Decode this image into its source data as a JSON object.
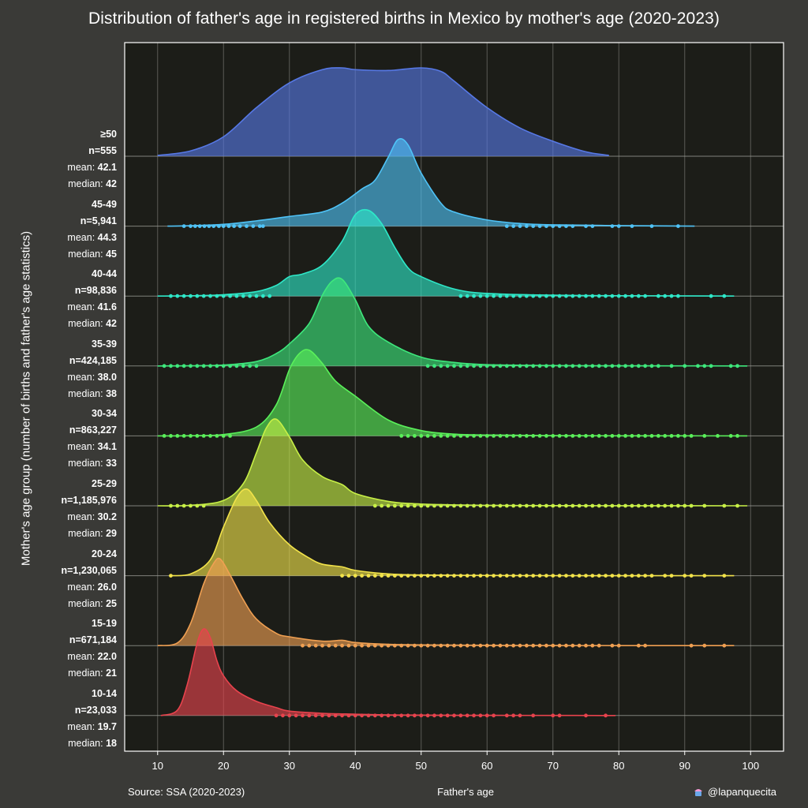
{
  "title": "Distribution of father's age in registered births in Mexico by mother's age (2020-2023)",
  "source": "Source: SSA (2020-2023)",
  "xlabel": "Father's age",
  "ylabel": "Mother's age group (number of births and father's age statistics)",
  "credit": "@lapanquecita",
  "labels": {
    "mean": "mean:",
    "median": "median:"
  },
  "colors": {
    "background": "#3a3a37",
    "plot_bg": "#1c1d18",
    "grid": "#5a5b55"
  },
  "chart_data": {
    "type": "ridgeline",
    "xlim": [
      5,
      105
    ],
    "xticks": [
      10,
      20,
      30,
      40,
      50,
      60,
      70,
      80,
      90,
      100
    ],
    "grid": true,
    "groups": [
      {
        "label": "≥50",
        "n": "n=555",
        "mean": "42.1",
        "median": "42",
        "color": "#5779e6",
        "x": [
          10,
          15,
          20,
          25,
          30,
          35,
          38,
          40,
          45,
          50,
          53,
          55,
          60,
          65,
          70,
          75,
          78.5
        ],
        "y": [
          0.01,
          0.06,
          0.22,
          0.55,
          0.83,
          0.98,
          1.0,
          0.98,
          0.97,
          1.0,
          0.96,
          0.85,
          0.55,
          0.32,
          0.17,
          0.05,
          0.01
        ],
        "outliers": []
      },
      {
        "label": "45-49",
        "n": "n=5,941",
        "mean": "44.3",
        "median": "45",
        "color": "#4fc3f7",
        "x": [
          11.5,
          15,
          20,
          25,
          30,
          35,
          38,
          41,
          43,
          45,
          46.5,
          48,
          50,
          53,
          55,
          60,
          65,
          70,
          80,
          91.5
        ],
        "y": [
          0.0,
          0.005,
          0.02,
          0.06,
          0.11,
          0.16,
          0.26,
          0.42,
          0.52,
          0.78,
          0.98,
          0.92,
          0.6,
          0.26,
          0.16,
          0.07,
          0.03,
          0.015,
          0.006,
          0.0
        ],
        "outliers": [
          14,
          15,
          15.7,
          16.4,
          17.1,
          17.8,
          18.5,
          19.3,
          20,
          20.8,
          21.6,
          22.5,
          23.5,
          24.5,
          25.5,
          26,
          63,
          64,
          65,
          66,
          67,
          68,
          69,
          70,
          71,
          72,
          73,
          75,
          76,
          79,
          80,
          82,
          85,
          89
        ]
      },
      {
        "label": "40-44",
        "n": "n=98,836",
        "mean": "41.6",
        "median": "42",
        "color": "#2ee8c8",
        "x": [
          10,
          15,
          20,
          25,
          28,
          30,
          32,
          35,
          38,
          40,
          42,
          44,
          46,
          48,
          50,
          55,
          60,
          70,
          80,
          97.5
        ],
        "y": [
          0.0,
          0.003,
          0.015,
          0.05,
          0.12,
          0.22,
          0.25,
          0.35,
          0.62,
          0.92,
          0.97,
          0.82,
          0.55,
          0.32,
          0.22,
          0.08,
          0.03,
          0.01,
          0.004,
          0.0
        ],
        "outliers": [
          12,
          13,
          14,
          15,
          16,
          17,
          18,
          19,
          20,
          21,
          22,
          23,
          24,
          25,
          26,
          27,
          56,
          57,
          58,
          59,
          60,
          61,
          62,
          63,
          64,
          65,
          66,
          67,
          68,
          69,
          70,
          71,
          72,
          73,
          74,
          75,
          76,
          77,
          78,
          79,
          80,
          81,
          82,
          83,
          84,
          86,
          87,
          88,
          89,
          94,
          96
        ]
      },
      {
        "label": "35-39",
        "n": "n=424,185",
        "mean": "38.0",
        "median": "38",
        "color": "#3ee87c",
        "x": [
          10,
          15,
          20,
          25,
          28,
          30,
          33,
          35,
          36.5,
          38,
          40,
          42,
          45,
          50,
          55,
          60,
          70,
          80,
          99.5
        ],
        "y": [
          0.0,
          0.002,
          0.01,
          0.05,
          0.14,
          0.25,
          0.48,
          0.8,
          0.96,
          0.98,
          0.75,
          0.45,
          0.27,
          0.1,
          0.04,
          0.015,
          0.005,
          0.002,
          0.0
        ],
        "outliers": [
          11,
          12,
          13,
          14,
          15,
          16,
          17,
          18,
          19,
          20,
          21,
          22,
          23,
          24,
          25,
          51,
          52,
          53,
          54,
          55,
          56,
          57,
          58,
          59,
          60,
          61,
          62,
          63,
          64,
          65,
          66,
          67,
          68,
          69,
          70,
          71,
          72,
          73,
          74,
          75,
          76,
          77,
          78,
          79,
          80,
          81,
          82,
          83,
          84,
          85,
          86,
          88,
          90,
          92,
          93,
          94,
          97,
          98
        ]
      },
      {
        "label": "30-34",
        "n": "n=863,227",
        "mean": "34.1",
        "median": "33",
        "color": "#5af05a",
        "x": [
          10,
          15,
          20,
          25,
          28,
          30,
          31.5,
          33,
          35,
          37,
          40,
          45,
          50,
          55,
          60,
          70,
          80,
          99.5
        ],
        "y": [
          0.0,
          0.002,
          0.015,
          0.1,
          0.35,
          0.75,
          0.93,
          0.97,
          0.82,
          0.62,
          0.45,
          0.18,
          0.06,
          0.02,
          0.01,
          0.003,
          0.001,
          0.0
        ],
        "outliers": [
          11,
          12,
          13,
          14,
          15,
          16,
          17,
          18,
          19,
          20,
          21,
          47,
          48,
          49,
          50,
          51,
          52,
          53,
          54,
          55,
          56,
          57,
          58,
          59,
          60,
          61,
          62,
          63,
          64,
          65,
          66,
          67,
          68,
          69,
          70,
          71,
          72,
          73,
          74,
          75,
          76,
          77,
          78,
          79,
          80,
          81,
          82,
          83,
          84,
          85,
          86,
          87,
          88,
          89,
          90,
          91,
          93,
          95,
          97,
          98
        ]
      },
      {
        "label": "25-29",
        "n": "n=1,185,976",
        "mean": "30.2",
        "median": "29",
        "color": "#c8f047",
        "x": [
          10,
          15,
          20,
          23,
          25,
          26.5,
          28,
          30,
          32,
          35,
          38,
          40,
          45,
          50,
          60,
          70,
          80,
          99.5
        ],
        "y": [
          0.0,
          0.005,
          0.06,
          0.25,
          0.6,
          0.88,
          0.98,
          0.78,
          0.52,
          0.33,
          0.24,
          0.14,
          0.05,
          0.02,
          0.005,
          0.002,
          0.001,
          0.0
        ],
        "outliers": [
          12,
          13,
          14,
          15,
          16,
          17,
          43,
          44,
          45,
          46,
          47,
          48,
          49,
          50,
          51,
          52,
          53,
          54,
          55,
          56,
          57,
          58,
          59,
          60,
          61,
          62,
          63,
          64,
          65,
          66,
          67,
          68,
          69,
          70,
          71,
          72,
          73,
          74,
          75,
          76,
          77,
          78,
          79,
          80,
          81,
          82,
          83,
          84,
          85,
          86,
          87,
          88,
          89,
          90,
          91,
          93,
          96,
          98
        ]
      },
      {
        "label": "20-24",
        "n": "n=1,230,065",
        "mean": "26.0",
        "median": "25",
        "color": "#f2e34a",
        "x": [
          12,
          15,
          18,
          20,
          22,
          23.5,
          25,
          27,
          30,
          33,
          35,
          38,
          40,
          45,
          50,
          60,
          70,
          97.5
        ],
        "y": [
          0.0,
          0.02,
          0.18,
          0.55,
          0.88,
          0.98,
          0.85,
          0.6,
          0.35,
          0.2,
          0.13,
          0.1,
          0.06,
          0.02,
          0.008,
          0.003,
          0.001,
          0.0
        ],
        "outliers": [
          12,
          38,
          39,
          40,
          41,
          42,
          43,
          44,
          45,
          46,
          47,
          48,
          49,
          50,
          51,
          52,
          53,
          54,
          55,
          56,
          57,
          58,
          59,
          60,
          61,
          62,
          63,
          64,
          65,
          66,
          67,
          68,
          69,
          70,
          71,
          72,
          73,
          74,
          75,
          76,
          77,
          78,
          79,
          80,
          81,
          82,
          83,
          84,
          85,
          87,
          88,
          90,
          91,
          93,
          96
        ]
      },
      {
        "label": "15-19",
        "n": "n=671,184",
        "mean": "22.0",
        "median": "21",
        "color": "#f0a052",
        "x": [
          10,
          13,
          15,
          17,
          18.5,
          19.5,
          21,
          23,
          25,
          28,
          30,
          35,
          38,
          40,
          45,
          50,
          60,
          70,
          80,
          97.5
        ],
        "y": [
          0.0,
          0.03,
          0.25,
          0.7,
          0.93,
          0.98,
          0.8,
          0.52,
          0.3,
          0.14,
          0.1,
          0.05,
          0.06,
          0.035,
          0.015,
          0.008,
          0.003,
          0.001,
          0.0005,
          0.0
        ],
        "outliers": [
          32,
          33,
          34,
          35,
          36,
          37,
          38,
          39,
          40,
          41,
          42,
          43,
          44,
          45,
          46,
          47,
          48,
          49,
          50,
          51,
          52,
          53,
          54,
          55,
          56,
          57,
          58,
          59,
          60,
          61,
          62,
          63,
          64,
          65,
          66,
          67,
          68,
          69,
          70,
          71,
          72,
          73,
          74,
          75,
          76,
          77,
          79,
          80,
          83,
          84,
          91,
          93,
          96
        ]
      },
      {
        "label": "10-14",
        "n": "n=23,033",
        "mean": "19.7",
        "median": "18",
        "color": "#e8434d",
        "x": [
          10.5,
          13,
          14.5,
          16,
          17,
          18,
          19,
          20,
          22,
          25,
          28,
          30,
          35,
          40,
          45,
          50,
          60,
          70,
          79.5
        ],
        "y": [
          0.0,
          0.06,
          0.35,
          0.82,
          0.98,
          0.88,
          0.62,
          0.45,
          0.28,
          0.16,
          0.09,
          0.05,
          0.025,
          0.015,
          0.007,
          0.004,
          0.002,
          0.001,
          0.0
        ],
        "outliers": [
          28,
          29,
          30,
          31,
          32,
          33,
          34,
          35,
          36,
          37,
          38,
          39,
          40,
          41,
          42,
          43,
          44,
          45,
          46,
          47,
          48,
          49,
          50,
          51,
          52,
          53,
          54,
          55,
          56,
          57,
          58,
          59,
          60,
          61,
          63,
          64,
          65,
          67,
          70,
          71,
          75,
          78
        ]
      }
    ]
  }
}
